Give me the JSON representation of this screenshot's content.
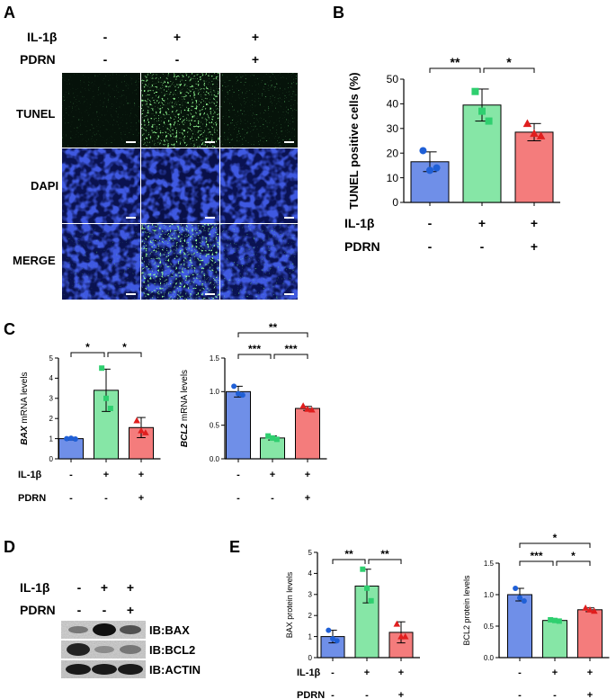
{
  "panels": {
    "A": {
      "letter": "A",
      "conditions": [
        {
          "name": "IL-1β",
          "signs": [
            "-",
            "+",
            "+"
          ]
        },
        {
          "name": "PDRN",
          "signs": [
            "-",
            "-",
            "+"
          ]
        }
      ],
      "rows": [
        "TUNEL",
        "DAPI",
        "MERGE"
      ]
    },
    "B": {
      "letter": "B"
    },
    "C": {
      "letter": "C"
    },
    "D": {
      "letter": "D",
      "conditions": [
        {
          "name": "IL-1β",
          "signs": [
            "-",
            "+",
            "+"
          ]
        },
        {
          "name": "PDRN",
          "signs": [
            "-",
            "-",
            "+"
          ]
        }
      ],
      "blots": [
        "IB:BAX",
        "IB:BCL2",
        "IB:ACTIN"
      ]
    },
    "E": {
      "letter": "E"
    }
  },
  "colors": {
    "group1": "#6f8fe8",
    "group2": "#86e6a6",
    "group3": "#f47c7c",
    "dot1": "#1f5fd6",
    "dot2": "#2fcf6f",
    "dot3": "#e01e1e"
  },
  "chart_data": [
    {
      "id": "B",
      "type": "bar",
      "ylabel": "TUNEL positive cells (%)",
      "ylim": [
        0,
        50
      ],
      "yticks": [
        0,
        10,
        20,
        30,
        40,
        50
      ],
      "values": [
        16.5,
        39.5,
        28.5
      ],
      "errors": [
        4.0,
        6.5,
        3.5
      ],
      "points": [
        [
          21,
          13,
          14
        ],
        [
          45,
          37,
          33
        ],
        [
          32,
          28,
          27
        ]
      ],
      "conditions": [
        {
          "name": "IL-1β",
          "signs": [
            "-",
            "+",
            "+"
          ]
        },
        {
          "name": "PDRN",
          "signs": [
            "-",
            "-",
            "+"
          ]
        }
      ],
      "sig": [
        {
          "from": 0,
          "to": 1,
          "label": "**",
          "level": 0
        },
        {
          "from": 1,
          "to": 2,
          "label": "*",
          "level": 0
        }
      ]
    },
    {
      "id": "C1",
      "type": "bar",
      "ylabel_italic": "BAX",
      "ylabel_rest": " mRNA levels",
      "ylim": [
        0,
        5
      ],
      "yticks": [
        0,
        1,
        2,
        3,
        4,
        5
      ],
      "values": [
        1.0,
        3.4,
        1.55
      ],
      "errors": [
        0.07,
        1.05,
        0.5
      ],
      "points": [
        [
          1.0,
          1.02,
          0.98
        ],
        [
          4.5,
          3.0,
          2.5
        ],
        [
          1.9,
          1.4,
          1.3
        ]
      ],
      "conditions": [
        {
          "name": "IL-1β",
          "signs": [
            "-",
            "+",
            "+"
          ]
        },
        {
          "name": "PDRN",
          "signs": [
            "-",
            "-",
            "+"
          ]
        }
      ],
      "sig": [
        {
          "from": 0,
          "to": 1,
          "label": "*",
          "level": 0
        },
        {
          "from": 1,
          "to": 2,
          "label": "*",
          "level": 0
        }
      ]
    },
    {
      "id": "C2",
      "type": "bar",
      "ylabel_italic": "BCL2",
      "ylabel_rest": " mRNA levels",
      "ylim": [
        0,
        1.5
      ],
      "yticks": [
        0.0,
        0.5,
        1.0,
        1.5
      ],
      "values": [
        1.0,
        0.31,
        0.75
      ],
      "errors": [
        0.08,
        0.03,
        0.03
      ],
      "points": [
        [
          1.08,
          0.97,
          0.95
        ],
        [
          0.34,
          0.31,
          0.29
        ],
        [
          0.79,
          0.74,
          0.73
        ]
      ],
      "conditions": [
        {
          "name": "IL-1β",
          "signs": [
            "-",
            "+",
            "+"
          ]
        },
        {
          "name": "PDRN",
          "signs": [
            "-",
            "-",
            "+"
          ]
        }
      ],
      "sig": [
        {
          "from": 0,
          "to": 2,
          "label": "**",
          "level": 1
        },
        {
          "from": 0,
          "to": 1,
          "label": "***",
          "level": 0
        },
        {
          "from": 1,
          "to": 2,
          "label": "***",
          "level": 0
        }
      ]
    },
    {
      "id": "E1",
      "type": "bar",
      "ylabel": "BAX protein levels",
      "ylim": [
        0,
        5
      ],
      "yticks": [
        0,
        1,
        2,
        3,
        4,
        5
      ],
      "values": [
        1.0,
        3.4,
        1.2
      ],
      "errors": [
        0.3,
        0.8,
        0.5
      ],
      "points": [
        [
          1.3,
          0.9,
          0.8
        ],
        [
          4.2,
          3.3,
          2.7
        ],
        [
          1.6,
          1.0,
          1.0
        ]
      ],
      "conditions": [
        {
          "name": "IL-1β",
          "signs": [
            "-",
            "+",
            "+"
          ]
        },
        {
          "name": "PDRN",
          "signs": [
            "-",
            "-",
            "+"
          ]
        }
      ],
      "sig": [
        {
          "from": 0,
          "to": 1,
          "label": "**",
          "level": 0
        },
        {
          "from": 1,
          "to": 2,
          "label": "**",
          "level": 0
        }
      ]
    },
    {
      "id": "E2",
      "type": "bar",
      "ylabel": "BCL2 protein levels",
      "ylim": [
        0,
        1.5
      ],
      "yticks": [
        0.0,
        0.5,
        1.0,
        1.5
      ],
      "values": [
        1.0,
        0.59,
        0.76
      ],
      "errors": [
        0.1,
        0.02,
        0.03
      ],
      "points": [
        [
          1.1,
          0.95,
          0.9
        ],
        [
          0.6,
          0.59,
          0.58
        ],
        [
          0.79,
          0.76,
          0.74
        ]
      ],
      "conditions": [
        {
          "name": "IL-1β",
          "signs": [
            "-",
            "+",
            "+"
          ]
        },
        {
          "name": "PDRN",
          "signs": [
            "-",
            "-",
            "+"
          ]
        }
      ],
      "sig": [
        {
          "from": 0,
          "to": 2,
          "label": "*",
          "level": 1
        },
        {
          "from": 0,
          "to": 1,
          "label": "***",
          "level": 0
        },
        {
          "from": 1,
          "to": 2,
          "label": "*",
          "level": 0
        }
      ]
    }
  ]
}
